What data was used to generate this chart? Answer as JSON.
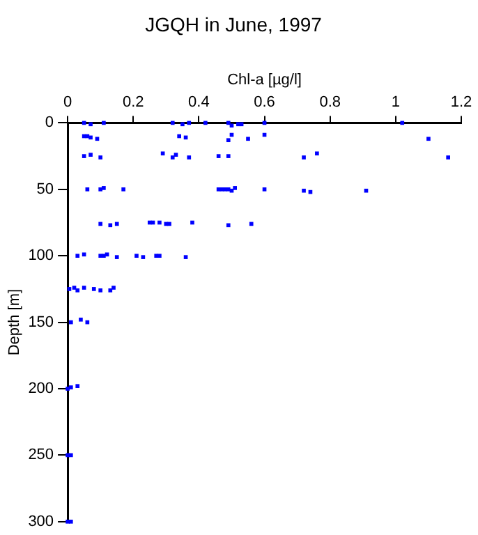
{
  "chart_data": {
    "type": "scatter",
    "title": "JGQH in June, 1997",
    "xlabel": "Chl-a [µg/l]",
    "ylabel": "Depth [m]",
    "xlim": [
      0,
      1.2
    ],
    "xticks": [
      0,
      0.2,
      0.4,
      0.6,
      0.8,
      1,
      1.2
    ],
    "ylim": [
      300,
      0
    ],
    "yticks": [
      0,
      50,
      100,
      150,
      200,
      250,
      300
    ],
    "marker": "square",
    "grid": false,
    "legend": false,
    "series": [
      {
        "color": "#0000ff",
        "x": [
          0.05,
          0.07,
          0.11,
          0.32,
          0.35,
          0.37,
          0.42,
          0.49,
          0.5,
          0.52,
          0.53,
          0.6,
          1.02,
          0.05,
          0.06,
          0.07,
          0.09,
          0.34,
          0.36,
          0.49,
          0.5,
          0.55,
          0.6,
          1.1,
          0.05,
          0.07,
          0.1,
          0.29,
          0.32,
          0.33,
          0.37,
          0.46,
          0.49,
          0.72,
          0.76,
          1.16,
          0.06,
          0.1,
          0.11,
          0.17,
          0.46,
          0.47,
          0.48,
          0.49,
          0.5,
          0.51,
          0.6,
          0.72,
          0.74,
          0.91,
          0.1,
          0.13,
          0.15,
          0.25,
          0.26,
          0.28,
          0.3,
          0.31,
          0.38,
          0.49,
          0.56,
          0.03,
          0.05,
          0.1,
          0.11,
          0.12,
          0.15,
          0.21,
          0.23,
          0.27,
          0.28,
          0.36,
          0.005,
          0.02,
          0.03,
          0.05,
          0.08,
          0.1,
          0.13,
          0.14,
          0.01,
          0.04,
          0.06,
          0,
          0.01,
          0.03,
          0,
          0.01,
          0,
          0.01
        ],
        "values": [
          0,
          1,
          0,
          0,
          1,
          0,
          0,
          0,
          2,
          1,
          1,
          0,
          0,
          10,
          10,
          11,
          12,
          10,
          11,
          13,
          9,
          12,
          9,
          12,
          25,
          24,
          26,
          23,
          26,
          24,
          26,
          25,
          25,
          26,
          23,
          26,
          50,
          50,
          49,
          50,
          50,
          50,
          50,
          50,
          51,
          49,
          50,
          51,
          52,
          51,
          76,
          77,
          76,
          75,
          75,
          75,
          76,
          76,
          75,
          77,
          76,
          100,
          99,
          100,
          100,
          99,
          101,
          100,
          101,
          100,
          100,
          101,
          125,
          124,
          126,
          124,
          125,
          126,
          126,
          124,
          150,
          148,
          150,
          200,
          199,
          198,
          250,
          250,
          300,
          300
        ]
      }
    ]
  }
}
